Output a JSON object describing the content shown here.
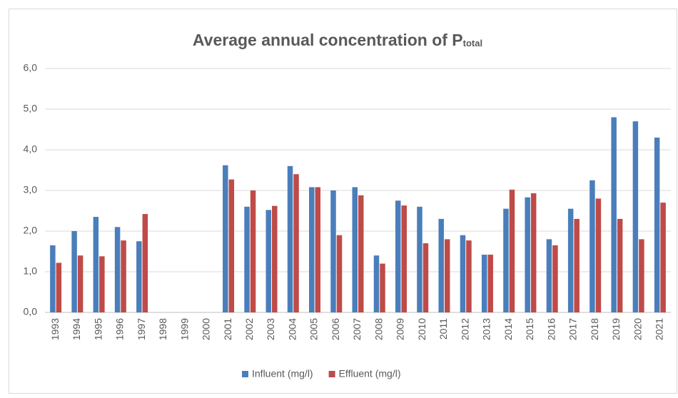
{
  "chart_data": {
    "type": "bar",
    "title": "Average annual concentration of P",
    "title_subscript": "total",
    "categories": [
      "1993",
      "1994",
      "1995",
      "1996",
      "1997",
      "1998",
      "1999",
      "2000",
      "2001",
      "2002",
      "2003",
      "2004",
      "2005",
      "2006",
      "2007",
      "2008",
      "2009",
      "2010",
      "2011",
      "2012",
      "2013",
      "2014",
      "2015",
      "2016",
      "2017",
      "2018",
      "2019",
      "2020",
      "2021"
    ],
    "series": [
      {
        "name": "Influent (mg/l)",
        "color": "#4a7ebb",
        "values": [
          1.65,
          2.0,
          2.35,
          2.1,
          1.75,
          null,
          null,
          null,
          3.62,
          2.6,
          2.52,
          3.6,
          3.08,
          3.0,
          3.08,
          1.4,
          2.75,
          2.6,
          2.3,
          1.9,
          1.42,
          2.55,
          2.83,
          1.8,
          2.55,
          3.25,
          4.8,
          4.7,
          4.3
        ]
      },
      {
        "name": "Effluent (mg/l)",
        "color": "#be4b48",
        "values": [
          1.22,
          1.4,
          1.38,
          1.77,
          2.42,
          null,
          null,
          null,
          3.27,
          3.0,
          2.62,
          3.4,
          3.08,
          1.9,
          2.88,
          1.2,
          2.63,
          1.7,
          1.8,
          1.77,
          1.42,
          3.02,
          2.93,
          1.65,
          2.3,
          2.8,
          2.3,
          1.8,
          2.7
        ]
      }
    ],
    "ylim": [
      0,
      6
    ],
    "yticks": [
      {
        "value": 0,
        "label": "0,0"
      },
      {
        "value": 1,
        "label": "1,0"
      },
      {
        "value": 2,
        "label": "2,0"
      },
      {
        "value": 3,
        "label": "3,0"
      },
      {
        "value": 4,
        "label": "4,0"
      },
      {
        "value": 5,
        "label": "5,0"
      },
      {
        "value": 6,
        "label": "6,0"
      }
    ],
    "grid": true,
    "legend": "bottom"
  }
}
